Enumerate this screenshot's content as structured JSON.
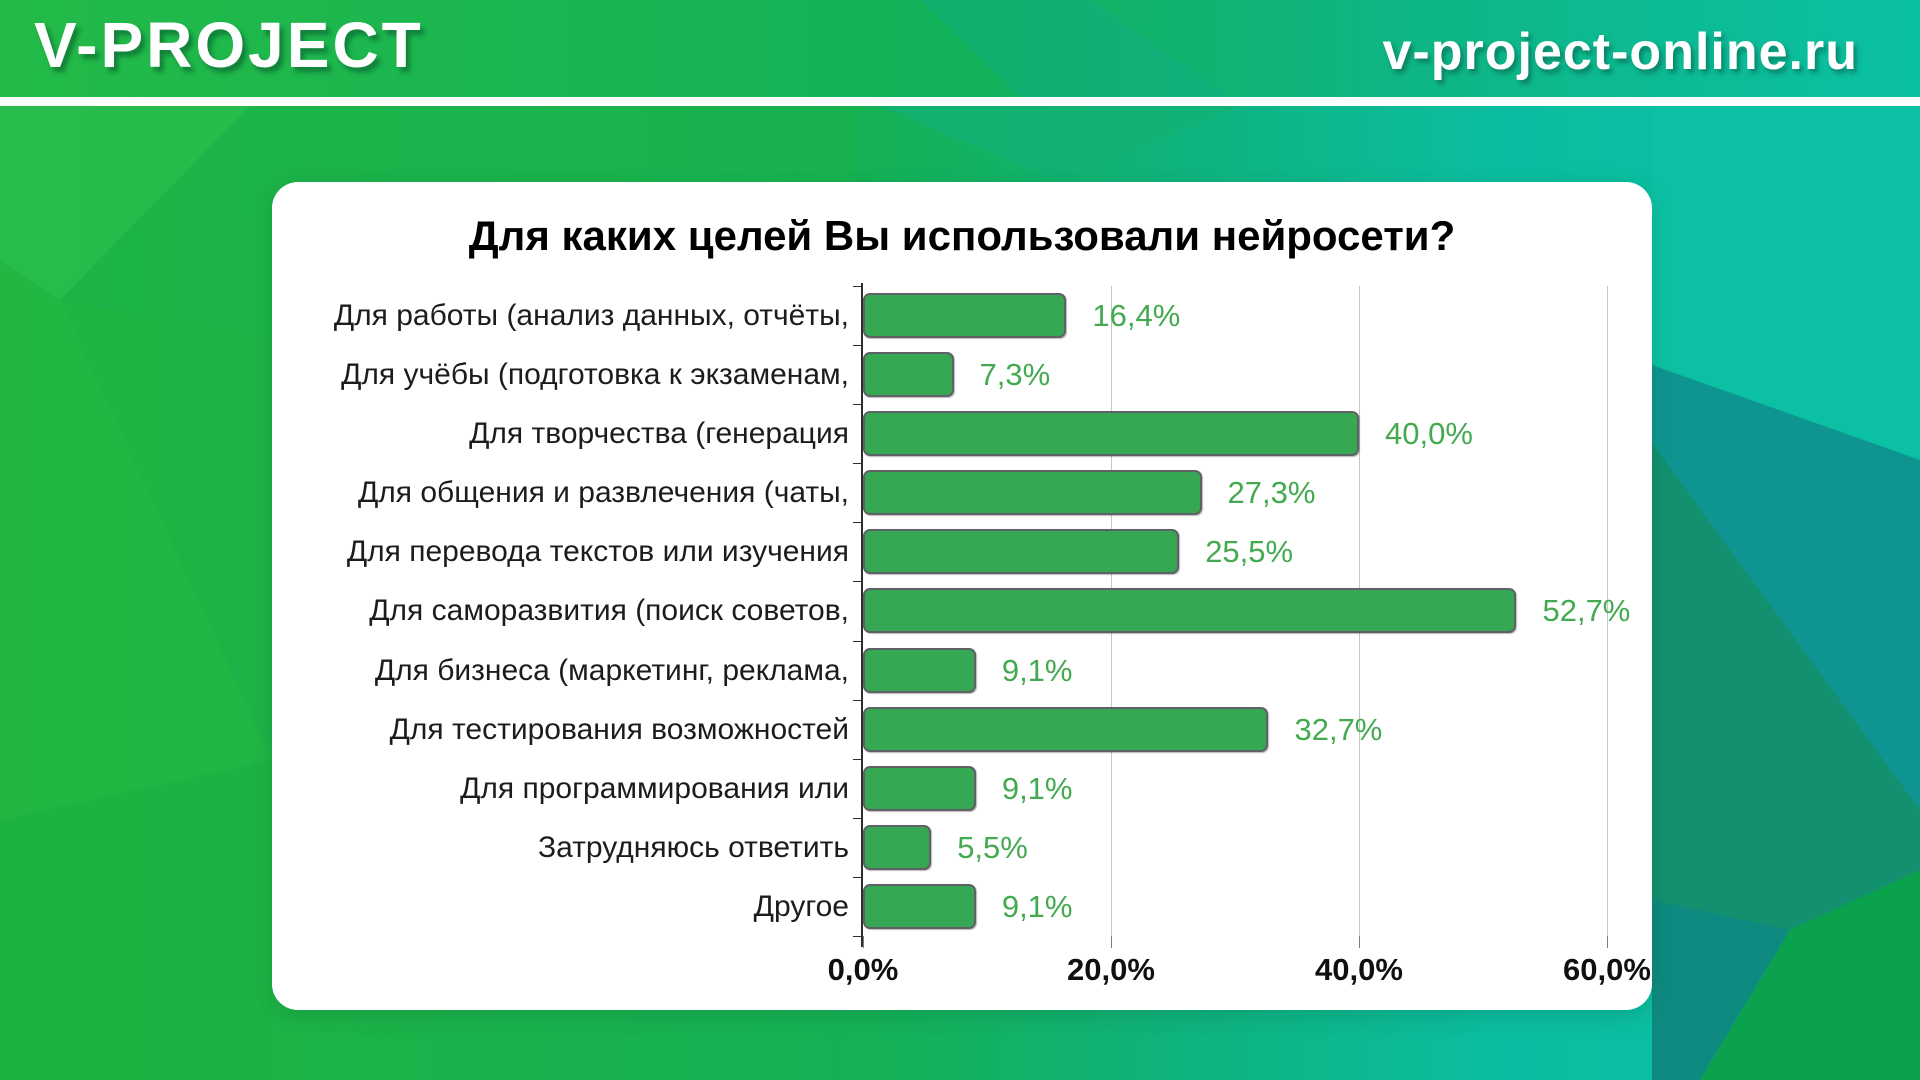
{
  "header": {
    "brand": "V-PROJECT",
    "site": "v-project-online.ru"
  },
  "colors": {
    "header_gradient": [
      "#23ba47",
      "#12b259",
      "#0fb583",
      "#0ac0a2"
    ],
    "card_background": "#ffffff",
    "bar_fill": "#36a853",
    "bar_border": "#5e6165",
    "value_label": "#43aa50",
    "gridline": "#c6c6c6",
    "axis": "#2e2e2e",
    "title_text": "#000000",
    "category_text": "#1c1c1c"
  },
  "chart_data": {
    "type": "bar",
    "orientation": "horizontal",
    "title": "Для каких целей Вы использовали нейросети?",
    "categories": [
      "Для работы (анализ данных, отчёты,",
      "Для учёбы (подготовка к экзаменам,",
      "Для творчества (генерация",
      "Для общения и развлечения (чаты,",
      "Для перевода текстов или изучения",
      "Для саморазвития (поиск советов,",
      "Для бизнеса (маркетинг, реклама,",
      "Для тестирования возможностей",
      "Для программирования или",
      "Затрудняюсь ответить",
      "Другое"
    ],
    "values": [
      16.4,
      7.3,
      40.0,
      27.3,
      25.5,
      52.7,
      9.1,
      32.7,
      9.1,
      5.5,
      9.1
    ],
    "value_labels": [
      "16,4%",
      "7,3%",
      "40,0%",
      "27,3%",
      "25,5%",
      "52,7%",
      "9,1%",
      "32,7%",
      "9,1%",
      "5,5%",
      "9,1%"
    ],
    "x_ticks": [
      "0,0%",
      "20,0%",
      "40,0%",
      "60,0%"
    ],
    "xlim": [
      0,
      60
    ],
    "xlabel": "",
    "ylabel": "",
    "grid": true,
    "legend": false
  }
}
